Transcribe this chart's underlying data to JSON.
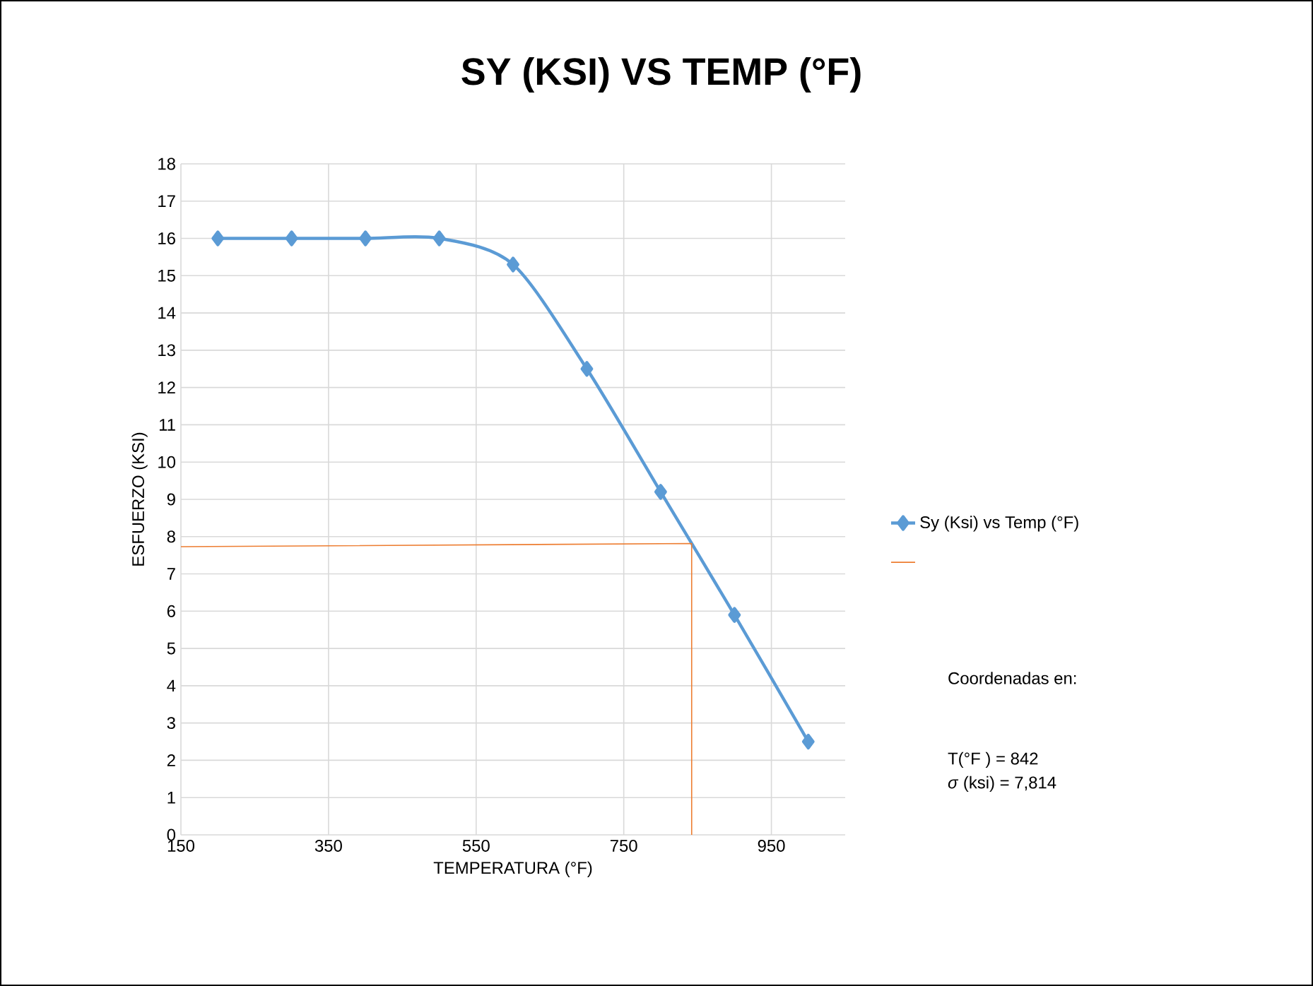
{
  "chart_data": {
    "type": "line",
    "title": "SY (KSI) VS TEMP (°F)",
    "xlabel": "TEMPERATURA (°F)",
    "ylabel": "ESFUERZO (KSI)",
    "xlim": [
      150,
      1050
    ],
    "xticks": [
      150,
      350,
      550,
      750,
      950
    ],
    "ylim": [
      0,
      18
    ],
    "yticks": [
      0,
      1,
      2,
      3,
      4,
      5,
      6,
      7,
      8,
      9,
      10,
      11,
      12,
      13,
      14,
      15,
      16,
      17,
      18
    ],
    "grid": true,
    "legend": "right",
    "series": [
      {
        "name": "Sy (Ksi) vs Temp (°F)",
        "color": "#5b9bd5",
        "marker": "diamond",
        "x": [
          200,
          300,
          400,
          500,
          600,
          700,
          800,
          900,
          1000
        ],
        "values": [
          16,
          16,
          16,
          16,
          15.3,
          12.5,
          9.2,
          5.9,
          2.5
        ]
      },
      {
        "color": "#ed7d31",
        "marker": "none",
        "x": [
          150,
          842,
          842
        ],
        "values": [
          7.73,
          7.814,
          0
        ]
      }
    ],
    "annotations": [
      "Coordenadas en:",
      "T(°F ) = 842",
      "*σ* (ksi) = 7,814"
    ]
  }
}
